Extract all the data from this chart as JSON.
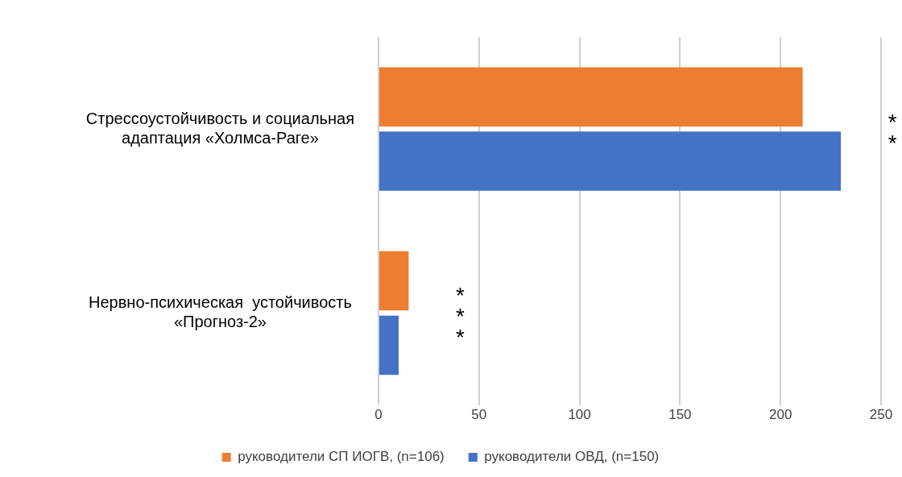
{
  "chart_data": {
    "type": "bar",
    "orientation": "horizontal",
    "categories": [
      "Стрессоустойчивость и социальная адаптация «Холмса-Раге»",
      "Нервно-психическая  устойчивость «Прогноз-2»"
    ],
    "series": [
      {
        "name": "руководители СП ИОГВ, (n=106)",
        "color": "#ed7d31",
        "values": [
          211,
          15
        ]
      },
      {
        "name": "руководители ОВД, (n=150)",
        "color": "#4472c4",
        "values": [
          230,
          10
        ]
      }
    ],
    "xlim": [
      0,
      250
    ],
    "xticks": [
      0,
      50,
      100,
      150,
      200,
      250
    ],
    "grid": "x",
    "legend": "bottom",
    "annotations": [
      "**",
      "***"
    ]
  }
}
